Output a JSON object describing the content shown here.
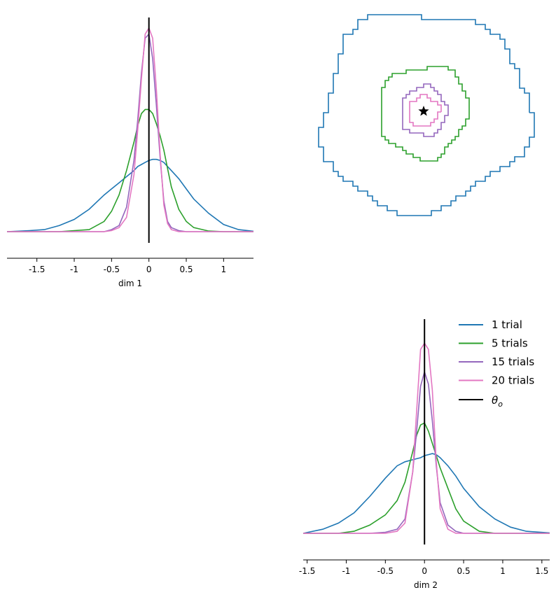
{
  "colors": {
    "trial1": "#1f77b4",
    "trial5": "#2ca02c",
    "trial15": "#9467bd",
    "trial20": "#e377c2",
    "true": "#000000"
  },
  "chart_data": [
    {
      "type": "line",
      "panel": "dim1-marginal",
      "xlabel": "dim 1",
      "xlim": [
        -1.9,
        1.4
      ],
      "xticks": [
        -1.5,
        -1,
        -0.5,
        0,
        0.5,
        1
      ],
      "xtick_labels": [
        "-1.5",
        "-1",
        "-0.5",
        "0",
        "0.5",
        "1"
      ],
      "true_value": 0,
      "x": [
        -1.9,
        -1.6,
        -1.4,
        -1.2,
        -1.0,
        -0.8,
        -0.6,
        -0.5,
        -0.4,
        -0.3,
        -0.2,
        -0.15,
        -0.1,
        -0.05,
        0,
        0.05,
        0.1,
        0.15,
        0.2,
        0.25,
        0.3,
        0.4,
        0.5,
        0.6,
        0.8,
        1.0,
        1.2,
        1.4
      ],
      "series": [
        {
          "name": "1 trial",
          "values": [
            0.0,
            0.005,
            0.01,
            0.03,
            0.06,
            0.11,
            0.18,
            0.21,
            0.24,
            0.27,
            0.3,
            0.32,
            0.33,
            0.34,
            0.35,
            0.355,
            0.355,
            0.35,
            0.34,
            0.32,
            0.3,
            0.26,
            0.21,
            0.16,
            0.09,
            0.035,
            0.01,
            0.002
          ]
        },
        {
          "name": "5 trials",
          "values": [
            0.0,
            0.0,
            0.0,
            0.0,
            0.005,
            0.01,
            0.05,
            0.1,
            0.18,
            0.3,
            0.44,
            0.52,
            0.58,
            0.6,
            0.6,
            0.58,
            0.53,
            0.47,
            0.4,
            0.31,
            0.22,
            0.11,
            0.05,
            0.02,
            0.003,
            0.0,
            0.0,
            0.0
          ]
        },
        {
          "name": "15 trials",
          "values": [
            0.0,
            0.0,
            0.0,
            0.0,
            0.0,
            0.0,
            0.0,
            0.01,
            0.03,
            0.12,
            0.35,
            0.55,
            0.78,
            0.95,
            0.97,
            0.85,
            0.62,
            0.36,
            0.15,
            0.05,
            0.02,
            0.005,
            0.0,
            0.0,
            0.0,
            0.0,
            0.0,
            0.0
          ]
        },
        {
          "name": "20 trials",
          "values": [
            0.0,
            0.0,
            0.0,
            0.0,
            0.0,
            0.0,
            0.0,
            0.005,
            0.02,
            0.07,
            0.28,
            0.5,
            0.75,
            0.97,
            1.0,
            0.95,
            0.7,
            0.38,
            0.13,
            0.04,
            0.01,
            0.0,
            0.0,
            0.0,
            0.0,
            0.0,
            0.0,
            0.0
          ]
        }
      ]
    },
    {
      "type": "line",
      "panel": "dim2-marginal",
      "xlabel": "dim 2",
      "xlim": [
        -1.55,
        1.6
      ],
      "xticks": [
        -1.5,
        -1,
        -0.5,
        0,
        0.5,
        1,
        1.5
      ],
      "xtick_labels": [
        "-1.5",
        "-1",
        "-0.5",
        "0",
        "0.5",
        "1",
        "1.5"
      ],
      "true_value": 0,
      "x": [
        -1.55,
        -1.3,
        -1.1,
        -0.9,
        -0.7,
        -0.5,
        -0.35,
        -0.25,
        -0.15,
        -0.1,
        -0.05,
        0,
        0.05,
        0.1,
        0.15,
        0.2,
        0.3,
        0.4,
        0.5,
        0.7,
        0.9,
        1.1,
        1.3,
        1.6
      ],
      "series": [
        {
          "name": "1 trial",
          "values": [
            0.0,
            0.02,
            0.05,
            0.1,
            0.18,
            0.27,
            0.33,
            0.35,
            0.36,
            0.365,
            0.37,
            0.38,
            0.385,
            0.39,
            0.385,
            0.37,
            0.33,
            0.28,
            0.22,
            0.13,
            0.07,
            0.03,
            0.01,
            0.002
          ]
        },
        {
          "name": "5 trials",
          "values": [
            0.0,
            0.0,
            0.0,
            0.01,
            0.04,
            0.09,
            0.16,
            0.25,
            0.4,
            0.48,
            0.53,
            0.54,
            0.5,
            0.44,
            0.38,
            0.32,
            0.22,
            0.12,
            0.06,
            0.01,
            0.0,
            0.0,
            0.0,
            0.0
          ]
        },
        {
          "name": "15 trials",
          "values": [
            0.0,
            0.0,
            0.0,
            0.0,
            0.0,
            0.005,
            0.02,
            0.07,
            0.3,
            0.5,
            0.72,
            0.79,
            0.73,
            0.55,
            0.33,
            0.15,
            0.04,
            0.01,
            0.0,
            0.0,
            0.0,
            0.0,
            0.0,
            0.0
          ]
        },
        {
          "name": "20 trials",
          "values": [
            0.0,
            0.0,
            0.0,
            0.0,
            0.0,
            0.0,
            0.01,
            0.05,
            0.3,
            0.6,
            0.9,
            0.93,
            0.9,
            0.7,
            0.35,
            0.12,
            0.02,
            0.0,
            0.0,
            0.0,
            0.0,
            0.0,
            0.0,
            0.0
          ]
        }
      ]
    },
    {
      "type": "contour",
      "panel": "dim1-dim2-joint",
      "true_point": [
        0,
        0
      ],
      "series": [
        {
          "name": "1 trial",
          "rx": 1.35,
          "ry": 1.3
        },
        {
          "name": "5 trials",
          "rx": 0.58,
          "ry": 0.6
        },
        {
          "name": "15 trials",
          "rx": 0.3,
          "ry": 0.32
        },
        {
          "name": "20 trials",
          "rx": 0.2,
          "ry": 0.2
        }
      ]
    }
  ],
  "legend": [
    {
      "key": "trial1",
      "label": "1 trial"
    },
    {
      "key": "trial5",
      "label": "5 trials"
    },
    {
      "key": "trial15",
      "label": "15 trials"
    },
    {
      "key": "trial20",
      "label": "20 trials"
    }
  ],
  "legend_true": {
    "symbol": "θ",
    "subscript": "o"
  }
}
